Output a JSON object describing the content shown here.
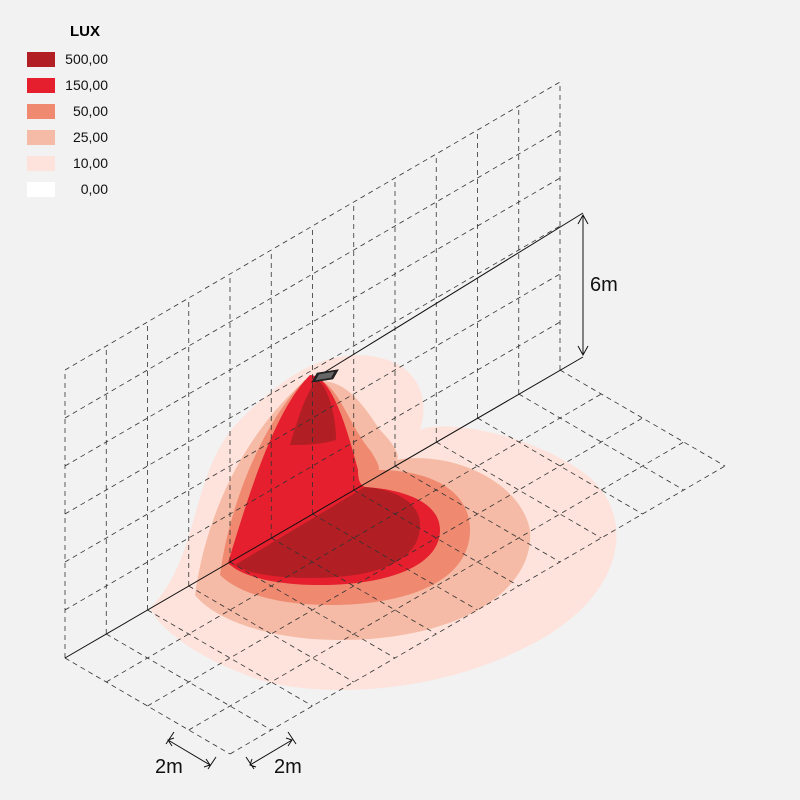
{
  "legend": {
    "title": "LUX",
    "entries": [
      {
        "label": "500,00",
        "color": "#b11f24"
      },
      {
        "label": "150,00",
        "color": "#e51f2d"
      },
      {
        "label": "50,00",
        "color": "#ef8a71"
      },
      {
        "label": "25,00",
        "color": "#f6bba6"
      },
      {
        "label": "10,00",
        "color": "#fde3dc"
      },
      {
        "label": "0,00",
        "color": "#ffffff"
      }
    ]
  },
  "dimensions": {
    "height": "6m",
    "grid_depth": "2m",
    "grid_width": "2m"
  }
}
